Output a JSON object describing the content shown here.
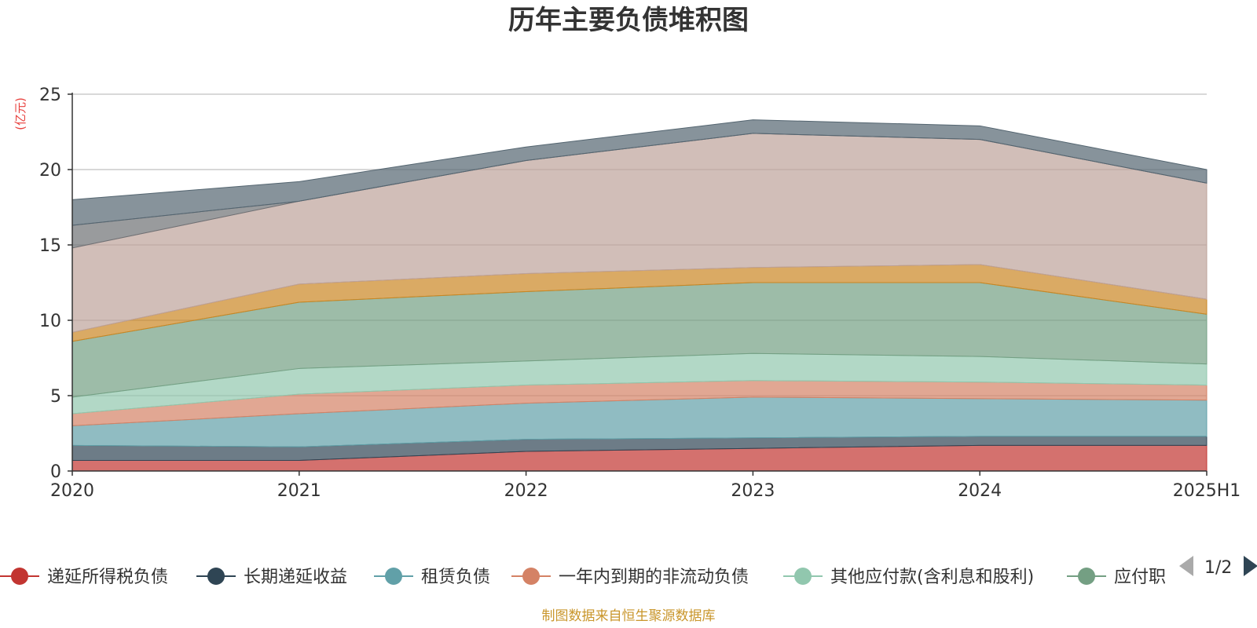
{
  "chart_data": {
    "type": "area",
    "stacked": true,
    "title": "历年主要负债堆积图",
    "y_unit": "(亿元)",
    "ylim": [
      0,
      25
    ],
    "y_ticks": [
      0,
      5,
      10,
      15,
      20,
      25
    ],
    "grid": true,
    "categories": [
      "2020",
      "2021",
      "2022",
      "2023",
      "2024",
      "2025H1"
    ],
    "series": [
      {
        "name": "递延所得税负债",
        "color": "#c23531",
        "values": [
          0.7,
          0.7,
          1.3,
          1.5,
          1.7,
          1.7
        ]
      },
      {
        "name": "长期递延收益",
        "color": "#2f4554",
        "values": [
          1.0,
          0.9,
          0.8,
          0.7,
          0.6,
          0.6
        ]
      },
      {
        "name": "租赁负债",
        "color": "#61a0a8",
        "values": [
          1.3,
          2.2,
          2.4,
          2.7,
          2.5,
          2.4
        ]
      },
      {
        "name": "一年内到期的非流动负债",
        "color": "#d48265",
        "values": [
          0.8,
          1.3,
          1.2,
          1.1,
          1.1,
          1.0
        ]
      },
      {
        "name": "其他应付款(含利息和股利)",
        "color": "#91c7ae",
        "values": [
          1.1,
          1.7,
          1.6,
          1.8,
          1.7,
          1.4
        ]
      },
      {
        "name": "应付职工薪酬",
        "color": "#749f83",
        "values": [
          3.7,
          4.4,
          4.6,
          4.7,
          4.9,
          3.3
        ]
      },
      {
        "name": "",
        "color": "#ca8622",
        "values": [
          0.6,
          1.2,
          1.2,
          1.0,
          1.2,
          1.0
        ]
      },
      {
        "name": "",
        "color": "#bda29a",
        "values": [
          5.6,
          5.5,
          7.5,
          8.9,
          8.3,
          7.7
        ]
      },
      {
        "name": "",
        "color": "#6e7074",
        "values": [
          1.5,
          0.0,
          0.0,
          0.0,
          0.0,
          0.0
        ]
      },
      {
        "name": "",
        "color": "#546570",
        "values": [
          1.7,
          1.3,
          0.9,
          0.9,
          0.9,
          0.9
        ]
      }
    ],
    "legend": {
      "position": "bottom",
      "visible_items": [
        "递延所得税负债",
        "长期递延收益",
        "租赁负债",
        "一年内到期的非流动负债",
        "其他应付款(含利息和股利)",
        "应付职"
      ],
      "page": "1/2"
    },
    "source": "制图数据来自恒生聚源数据库"
  }
}
